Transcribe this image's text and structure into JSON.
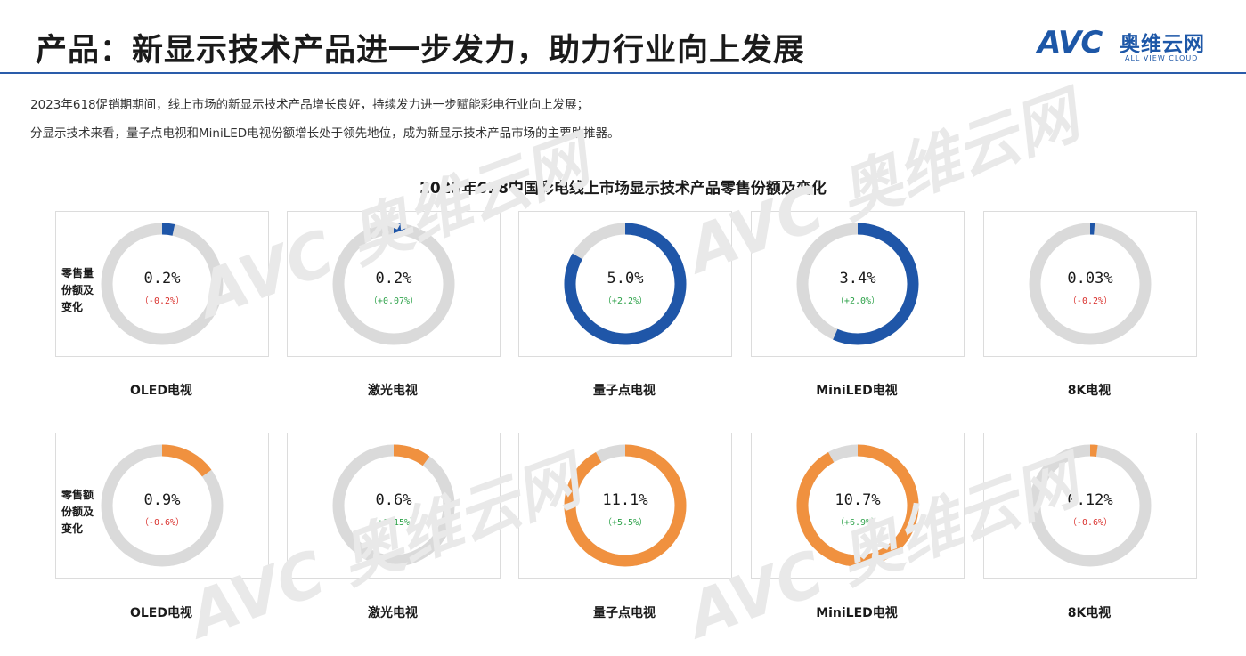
{
  "header": {
    "title": "产品：新显示技术产品进一步发力，助力行业向上发展",
    "logo_text": "AVC",
    "logo_cn": "奥维云网",
    "logo_en": "ALL VIEW CLOUD"
  },
  "description": [
    "2023年618促销期期间，线上市场的新显示技术产品增长良好，持续发力进一步赋能彩电行业向上发展；",
    "分显示技术来看，量子点电视和MiniLED电视份额增长处于领先地位，成为新显示技术产品市场的主要助推器。"
  ],
  "colors": {
    "volume": "#1f56a8",
    "value": "#f0913f",
    "track": "#dadada",
    "up": "#2ea24a",
    "down": "#d9302c"
  },
  "chart_data": {
    "type": "donut",
    "title": "2023年618中国彩电线上市场显示技术产品零售份额及变化",
    "categories": [
      "OLED电视",
      "激光电视",
      "量子点电视",
      "MiniLED电视",
      "8K电视"
    ],
    "series": [
      {
        "name": "零售量份额及变化",
        "values": [
          0.2,
          0.2,
          5.0,
          3.4,
          0.03
        ],
        "labels": [
          "0.2%",
          "0.2%",
          "5.0%",
          "3.4%",
          "0.03%"
        ],
        "changes": [
          "（-0.2%）",
          "（+0.07%）",
          "（+2.2%）",
          "（+2.0%）",
          "（-0.2%）"
        ]
      },
      {
        "name": "零售额份额及变化",
        "values": [
          0.9,
          0.6,
          11.1,
          10.7,
          0.12
        ],
        "labels": [
          "0.9%",
          "0.6%",
          "11.1%",
          "10.7%",
          "0.12%"
        ],
        "changes": [
          "（-0.6%）",
          "（+0.15%）",
          "（+5.5%）",
          "（+6.9%）",
          "（-0.6%）"
        ]
      }
    ]
  }
}
